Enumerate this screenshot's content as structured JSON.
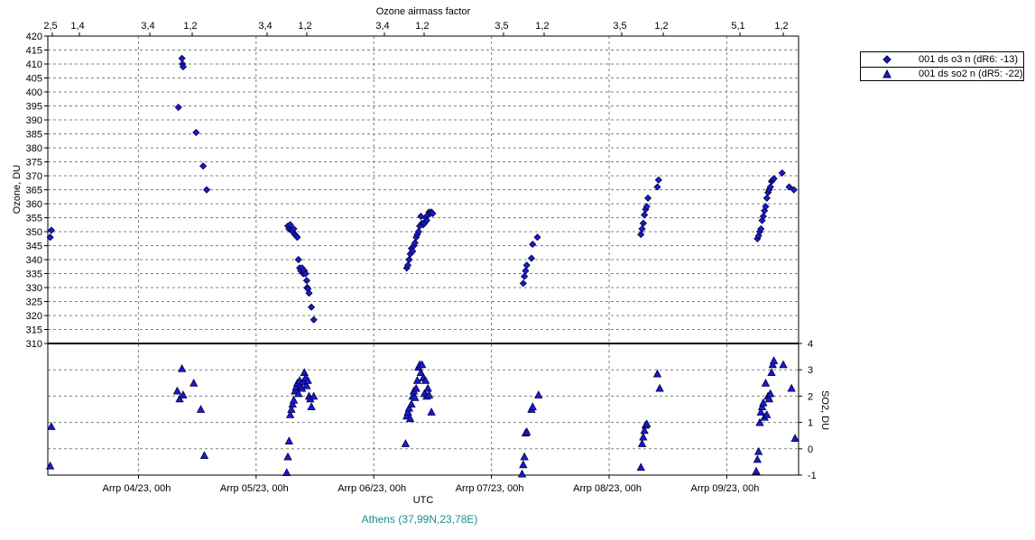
{
  "chart_data": {
    "type": "scatter",
    "xlabel": "UTC",
    "station": "Athens (37,99N,23,78E)",
    "top_axis_label": "Ozone airmass factor",
    "top_ticks": [
      "2,5",
      "1,4",
      "3,4",
      "1,2",
      "3,4",
      "1,2",
      "3,4",
      "1,2",
      "3,5",
      "1,2",
      "3,5",
      "1,2",
      "5,1",
      "1,2"
    ],
    "x_categories": [
      "Arrp 04/23, 00h",
      "Arrp 05/23, 00h",
      "Arrp 06/23, 00h",
      "Arrp 07/23, 00h",
      "Arrp 08/23, 00h",
      "Arrp 09/23, 00h"
    ],
    "x_domain_days": [
      3.23,
      9.61
    ],
    "upper": {
      "ylabel": "Ozone, DU",
      "ylim": [
        310,
        420
      ],
      "yticks": [
        310,
        315,
        320,
        325,
        330,
        335,
        340,
        345,
        350,
        355,
        360,
        365,
        370,
        375,
        380,
        385,
        390,
        395,
        400,
        405,
        410,
        415,
        420
      ],
      "series_name": "001 ds o3  n (dR6: -13)",
      "points": [
        [
          3.25,
          348
        ],
        [
          3.26,
          350.5
        ],
        [
          4.34,
          394.5
        ],
        [
          4.37,
          412
        ],
        [
          4.375,
          410
        ],
        [
          4.38,
          409
        ],
        [
          4.49,
          385.5
        ],
        [
          4.55,
          373.5
        ],
        [
          4.58,
          365
        ],
        [
          5.27,
          352
        ],
        [
          5.28,
          351
        ],
        [
          5.29,
          352.5
        ],
        [
          5.3,
          350.5
        ],
        [
          5.31,
          350
        ],
        [
          5.32,
          351
        ],
        [
          5.33,
          349
        ],
        [
          5.34,
          348.5
        ],
        [
          5.35,
          348
        ],
        [
          5.36,
          340
        ],
        [
          5.37,
          337
        ],
        [
          5.38,
          336
        ],
        [
          5.39,
          337
        ],
        [
          5.4,
          335
        ],
        [
          5.41,
          336
        ],
        [
          5.42,
          335
        ],
        [
          5.43,
          332.5
        ],
        [
          5.435,
          330
        ],
        [
          5.44,
          329.5
        ],
        [
          5.45,
          328
        ],
        [
          5.47,
          323
        ],
        [
          5.49,
          318.5
        ],
        [
          6.28,
          337
        ],
        [
          6.29,
          338
        ],
        [
          6.3,
          340
        ],
        [
          6.31,
          342
        ],
        [
          6.32,
          344
        ],
        [
          6.33,
          343
        ],
        [
          6.34,
          345
        ],
        [
          6.35,
          346
        ],
        [
          6.36,
          348
        ],
        [
          6.37,
          349
        ],
        [
          6.38,
          350
        ],
        [
          6.39,
          352
        ],
        [
          6.4,
          355.5
        ],
        [
          6.41,
          353
        ],
        [
          6.42,
          352.5
        ],
        [
          6.43,
          353
        ],
        [
          6.44,
          355
        ],
        [
          6.45,
          354
        ],
        [
          6.46,
          356
        ],
        [
          6.47,
          357
        ],
        [
          6.48,
          356.5
        ],
        [
          6.49,
          357
        ],
        [
          6.5,
          356.5
        ],
        [
          7.27,
          331.5
        ],
        [
          7.28,
          334
        ],
        [
          7.29,
          336
        ],
        [
          7.3,
          338
        ],
        [
          7.34,
          340.5
        ],
        [
          7.35,
          345.5
        ],
        [
          7.39,
          348
        ],
        [
          8.27,
          349
        ],
        [
          8.28,
          351
        ],
        [
          8.29,
          353
        ],
        [
          8.3,
          356
        ],
        [
          8.31,
          358
        ],
        [
          8.32,
          359
        ],
        [
          8.33,
          362
        ],
        [
          8.41,
          366
        ],
        [
          8.42,
          368.5
        ],
        [
          9.26,
          347.5
        ],
        [
          9.27,
          348.5
        ],
        [
          9.28,
          350
        ],
        [
          9.29,
          351
        ],
        [
          9.3,
          354
        ],
        [
          9.31,
          355.5
        ],
        [
          9.32,
          357.5
        ],
        [
          9.33,
          359
        ],
        [
          9.34,
          362
        ],
        [
          9.35,
          364
        ],
        [
          9.36,
          365
        ],
        [
          9.37,
          366
        ],
        [
          9.38,
          368
        ],
        [
          9.39,
          368.5
        ],
        [
          9.4,
          369
        ],
        [
          9.47,
          371
        ],
        [
          9.53,
          366
        ],
        [
          9.57,
          365
        ]
      ]
    },
    "lower": {
      "ylabel": "SO2, DU",
      "ylim": [
        -1,
        4
      ],
      "yticks": [
        -1,
        0,
        1,
        2,
        3,
        4
      ],
      "series_name": "001 ds so2 n (dR5: -22)",
      "points": [
        [
          3.25,
          -0.65
        ],
        [
          3.26,
          0.85
        ],
        [
          4.33,
          2.2
        ],
        [
          4.35,
          1.9
        ],
        [
          4.37,
          3.05
        ],
        [
          4.38,
          2.05
        ],
        [
          4.47,
          2.5
        ],
        [
          4.53,
          1.5
        ],
        [
          4.56,
          -0.25
        ],
        [
          5.26,
          -0.9
        ],
        [
          5.27,
          -0.3
        ],
        [
          5.28,
          0.3
        ],
        [
          5.29,
          1.3
        ],
        [
          5.3,
          1.5
        ],
        [
          5.31,
          1.7
        ],
        [
          5.32,
          1.85
        ],
        [
          5.33,
          2.2
        ],
        [
          5.34,
          2.35
        ],
        [
          5.35,
          2.5
        ],
        [
          5.36,
          2.1
        ],
        [
          5.37,
          2.6
        ],
        [
          5.38,
          2.4
        ],
        [
          5.39,
          2.3
        ],
        [
          5.4,
          2.55
        ],
        [
          5.41,
          2.9
        ],
        [
          5.42,
          2.7
        ],
        [
          5.43,
          2.4
        ],
        [
          5.44,
          2.6
        ],
        [
          5.45,
          2.0
        ],
        [
          5.46,
          1.9
        ],
        [
          5.47,
          1.6
        ],
        [
          5.49,
          2.0
        ],
        [
          6.27,
          0.2
        ],
        [
          6.28,
          1.25
        ],
        [
          6.29,
          1.4
        ],
        [
          6.3,
          1.55
        ],
        [
          6.31,
          1.15
        ],
        [
          6.32,
          1.7
        ],
        [
          6.33,
          2.0
        ],
        [
          6.34,
          2.2
        ],
        [
          6.35,
          1.95
        ],
        [
          6.36,
          2.3
        ],
        [
          6.37,
          2.6
        ],
        [
          6.38,
          3.1
        ],
        [
          6.39,
          3.2
        ],
        [
          6.4,
          2.9
        ],
        [
          6.41,
          3.2
        ],
        [
          6.42,
          2.7
        ],
        [
          6.43,
          2.1
        ],
        [
          6.44,
          2.6
        ],
        [
          6.45,
          2.0
        ],
        [
          6.46,
          2.3
        ],
        [
          6.47,
          2.05
        ],
        [
          6.49,
          1.4
        ],
        [
          7.26,
          -0.95
        ],
        [
          7.27,
          -0.6
        ],
        [
          7.28,
          -0.3
        ],
        [
          7.29,
          0.6
        ],
        [
          7.3,
          0.65
        ],
        [
          7.34,
          1.5
        ],
        [
          7.35,
          1.6
        ],
        [
          7.4,
          2.05
        ],
        [
          8.27,
          -0.7
        ],
        [
          8.28,
          0.2
        ],
        [
          8.29,
          0.45
        ],
        [
          8.3,
          0.7
        ],
        [
          8.31,
          0.9
        ],
        [
          8.32,
          0.95
        ],
        [
          8.41,
          2.85
        ],
        [
          8.43,
          2.3
        ],
        [
          9.25,
          -0.85
        ],
        [
          9.26,
          -0.4
        ],
        [
          9.27,
          -0.1
        ],
        [
          9.28,
          1.0
        ],
        [
          9.29,
          1.4
        ],
        [
          9.3,
          1.6
        ],
        [
          9.31,
          1.75
        ],
        [
          9.32,
          1.2
        ],
        [
          9.33,
          2.5
        ],
        [
          9.34,
          1.3
        ],
        [
          9.35,
          2.0
        ],
        [
          9.36,
          1.9
        ],
        [
          9.37,
          2.1
        ],
        [
          9.38,
          2.9
        ],
        [
          9.39,
          3.2
        ],
        [
          9.4,
          3.35
        ],
        [
          9.48,
          3.2
        ],
        [
          9.55,
          2.3
        ],
        [
          9.58,
          0.4
        ]
      ]
    }
  }
}
